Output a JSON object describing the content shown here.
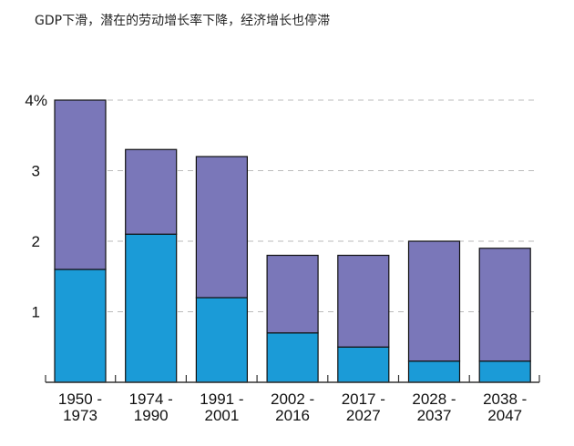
{
  "chart_data": {
    "type": "bar",
    "stacked": true,
    "title": "GDP下滑，潜在的劳动增长率下降，经济增长也停滞",
    "categories": [
      [
        "1950 -",
        "1973"
      ],
      [
        "1974 -",
        "1990"
      ],
      [
        "1991 -",
        "2001"
      ],
      [
        "2002 -",
        "2016"
      ],
      [
        "2017 -",
        "2027"
      ],
      [
        "2028 -",
        "2037"
      ],
      [
        "2038 -",
        "2047"
      ]
    ],
    "series": [
      {
        "name": "",
        "color": "#1b9bd7",
        "values": [
          1.6,
          2.1,
          1.2,
          0.7,
          0.5,
          0.3,
          0.3
        ]
      },
      {
        "name": "",
        "color": "#7a77b9",
        "values": [
          2.4,
          1.2,
          2.0,
          1.1,
          1.3,
          1.7,
          1.6
        ]
      }
    ],
    "totals": [
      4.0,
      3.3,
      3.2,
      1.8,
      1.8,
      2.0,
      1.9
    ],
    "yticks": [
      "1",
      "2",
      "3",
      "4%"
    ],
    "ytick_values": [
      1,
      2,
      3,
      4
    ],
    "ylim": [
      0,
      4
    ],
    "grid": "dashed horizontal",
    "xlabel": "",
    "ylabel": ""
  }
}
